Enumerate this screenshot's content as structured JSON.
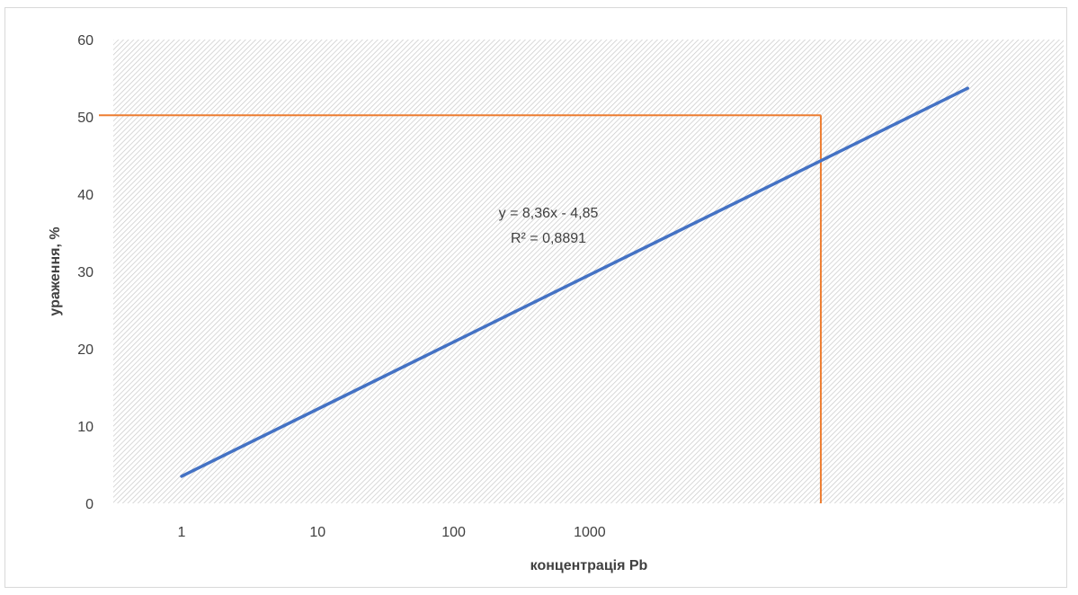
{
  "chart_data": {
    "type": "line",
    "title": "",
    "xlabel": "концентрація Pb",
    "ylabel": "ураження, %",
    "y_ticks": [
      "0",
      "10",
      "20",
      "30",
      "40",
      "50",
      "60"
    ],
    "ylim": [
      0,
      60
    ],
    "x_categories": [
      "1",
      "10",
      "100",
      "1000",
      "",
      "",
      "",
      "",
      "",
      "",
      "",
      "",
      "",
      "",
      ""
    ],
    "x_tick_labels": [
      "1",
      "10",
      "100",
      "1000"
    ],
    "x_scale": "log",
    "grid": false,
    "background": "hatched",
    "series": [
      {
        "color": "#4472c4",
        "points": [
          {
            "x": 1,
            "y": 3.5
          },
          {
            "x": 600000,
            "y": 53.7
          }
        ]
      }
    ],
    "reference_lines": {
      "color": "#ed7d31",
      "horizontal_y": 50.2,
      "vertical_x": 50000
    },
    "trendline_equation": "y = 8,36x - 4,85",
    "r_squared": "R² = 0,8891",
    "colors": {
      "series": "#4472c4",
      "reference": "#ed7d31",
      "text": "#404040",
      "plot_bg": "#ffffff",
      "hatch": "#bfbfbf"
    }
  }
}
